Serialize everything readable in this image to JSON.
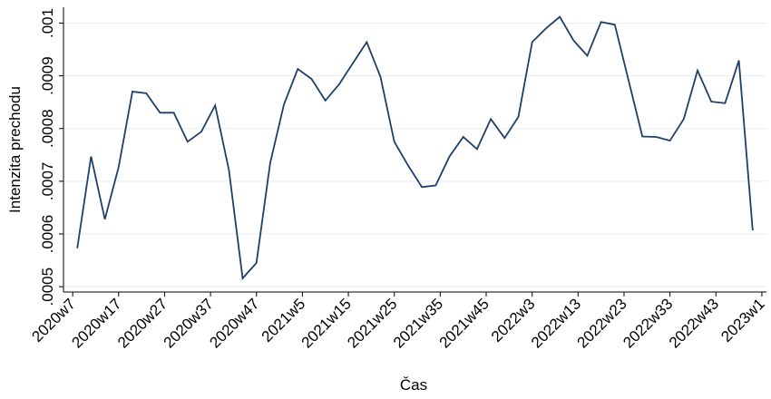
{
  "chart_data": {
    "type": "line",
    "xlabel": "Čas",
    "ylabel": "Intenzita prechodu",
    "x": [
      "2020w8",
      "2020w11",
      "2020w14",
      "2020w17",
      "2020w20",
      "2020w23",
      "2020w26",
      "2020w29",
      "2020w32",
      "2020w35",
      "2020w38",
      "2020w41",
      "2020w44",
      "2020w47",
      "2020w50",
      "2021w1",
      "2021w4",
      "2021w7",
      "2021w10",
      "2021w13",
      "2021w16",
      "2021w19",
      "2021w22",
      "2021w25",
      "2021w28",
      "2021w31",
      "2021w34",
      "2021w37",
      "2021w40",
      "2021w43",
      "2021w46",
      "2021w49",
      "2021w52",
      "2022w3",
      "2022w6",
      "2022w9",
      "2022w12",
      "2022w15",
      "2022w18",
      "2022w21",
      "2022w24",
      "2022w27",
      "2022w30",
      "2022w33",
      "2022w36",
      "2022w39",
      "2022w42",
      "2022w45",
      "2022w48",
      "2022w51"
    ],
    "series": [
      {
        "name": "Intenzita prechodu",
        "color": "#1f3f66",
        "values": [
          0.000573,
          0.000747,
          0.000628,
          0.000727,
          0.00087,
          0.000867,
          0.00083,
          0.00083,
          0.000775,
          0.000794,
          0.000844,
          0.000721,
          0.000516,
          0.000545,
          0.000735,
          0.000846,
          0.000913,
          0.000894,
          0.000853,
          0.000884,
          0.000924,
          0.000964,
          0.000898,
          0.000775,
          0.00073,
          0.000689,
          0.000692,
          0.000747,
          0.000784,
          0.000761,
          0.000818,
          0.000782,
          0.000822,
          0.000964,
          0.00099,
          0.001012,
          0.000967,
          0.000938,
          0.001002,
          0.000997,
          0.000891,
          0.000785,
          0.000784,
          0.000777,
          0.000818,
          0.00091,
          0.000851,
          0.000848,
          0.000929,
          0.000607
        ]
      }
    ],
    "xlim": [
      "2020w5",
      "2023w2"
    ],
    "xticks": [
      "2020w7",
      "2020w17",
      "2020w27",
      "2020w37",
      "2020w47",
      "2021w5",
      "2021w15",
      "2021w25",
      "2021w35",
      "2021w45",
      "2022w3",
      "2022w13",
      "2022w23",
      "2022w33",
      "2022w43",
      "2023w1"
    ],
    "ylim": [
      0.00049,
      0.00103
    ],
    "yticks": [
      {
        "value": 0.0005,
        "label": ".0005"
      },
      {
        "value": 0.0006,
        "label": ".0006"
      },
      {
        "value": 0.0007,
        "label": ".0007"
      },
      {
        "value": 0.0008,
        "label": ".0008"
      },
      {
        "value": 0.0009,
        "label": ".0009"
      },
      {
        "value": 0.001,
        "label": ".001"
      }
    ],
    "grid": true
  }
}
